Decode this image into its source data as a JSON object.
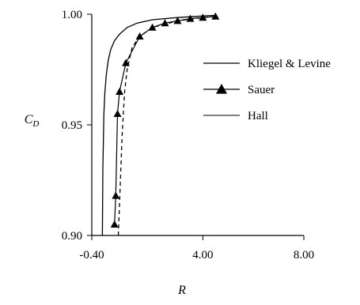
{
  "chart_data": {
    "type": "line",
    "title": "",
    "xlabel": "R",
    "ylabel": {
      "main": "C",
      "sub": "D"
    },
    "xlim": [
      -0.4,
      8.0
    ],
    "ylim": [
      0.9,
      1.0
    ],
    "x_ticks": [
      {
        "value": -0.4,
        "label": "-0.40"
      },
      {
        "value": 4.0,
        "label": "4.00"
      },
      {
        "value": 8.0,
        "label": "8.00"
      }
    ],
    "y_ticks": [
      {
        "value": 0.9,
        "label": "0.90"
      },
      {
        "value": 0.95,
        "label": "0.95"
      },
      {
        "value": 1.0,
        "label": "1.00"
      }
    ],
    "grid": false,
    "legend_position": "right",
    "series": [
      {
        "name": "Kliegel & Levine",
        "style": "solid-thin",
        "color": "#000000",
        "x": [
          0.02,
          0.04,
          0.08,
          0.12,
          0.18,
          0.25,
          0.35,
          0.5,
          0.7,
          1.0,
          1.4,
          2.0,
          3.0,
          4.0,
          4.5
        ],
        "y": [
          0.9,
          0.93,
          0.955,
          0.965,
          0.973,
          0.979,
          0.984,
          0.988,
          0.991,
          0.994,
          0.996,
          0.9975,
          0.9985,
          0.9992,
          0.9995
        ]
      },
      {
        "name": "Sauer",
        "style": "solid-with-triangle-markers",
        "color": "#000000",
        "x": [
          0.5,
          0.55,
          0.62,
          0.7,
          0.95,
          1.5,
          2.0,
          2.5,
          3.0,
          3.5,
          4.0,
          4.5
        ],
        "y": [
          0.905,
          0.918,
          0.955,
          0.965,
          0.978,
          0.99,
          0.994,
          0.996,
          0.997,
          0.998,
          0.9985,
          0.999
        ]
      },
      {
        "name": "Hall",
        "style": "dashed",
        "color": "#000000",
        "x": [
          0.65,
          0.72,
          0.8,
          0.9,
          1.0,
          1.2,
          1.5,
          2.0,
          3.0,
          4.0,
          4.5
        ],
        "y": [
          0.9,
          0.92,
          0.945,
          0.965,
          0.975,
          0.985,
          0.99,
          0.994,
          0.997,
          0.9985,
          0.999
        ]
      }
    ]
  }
}
